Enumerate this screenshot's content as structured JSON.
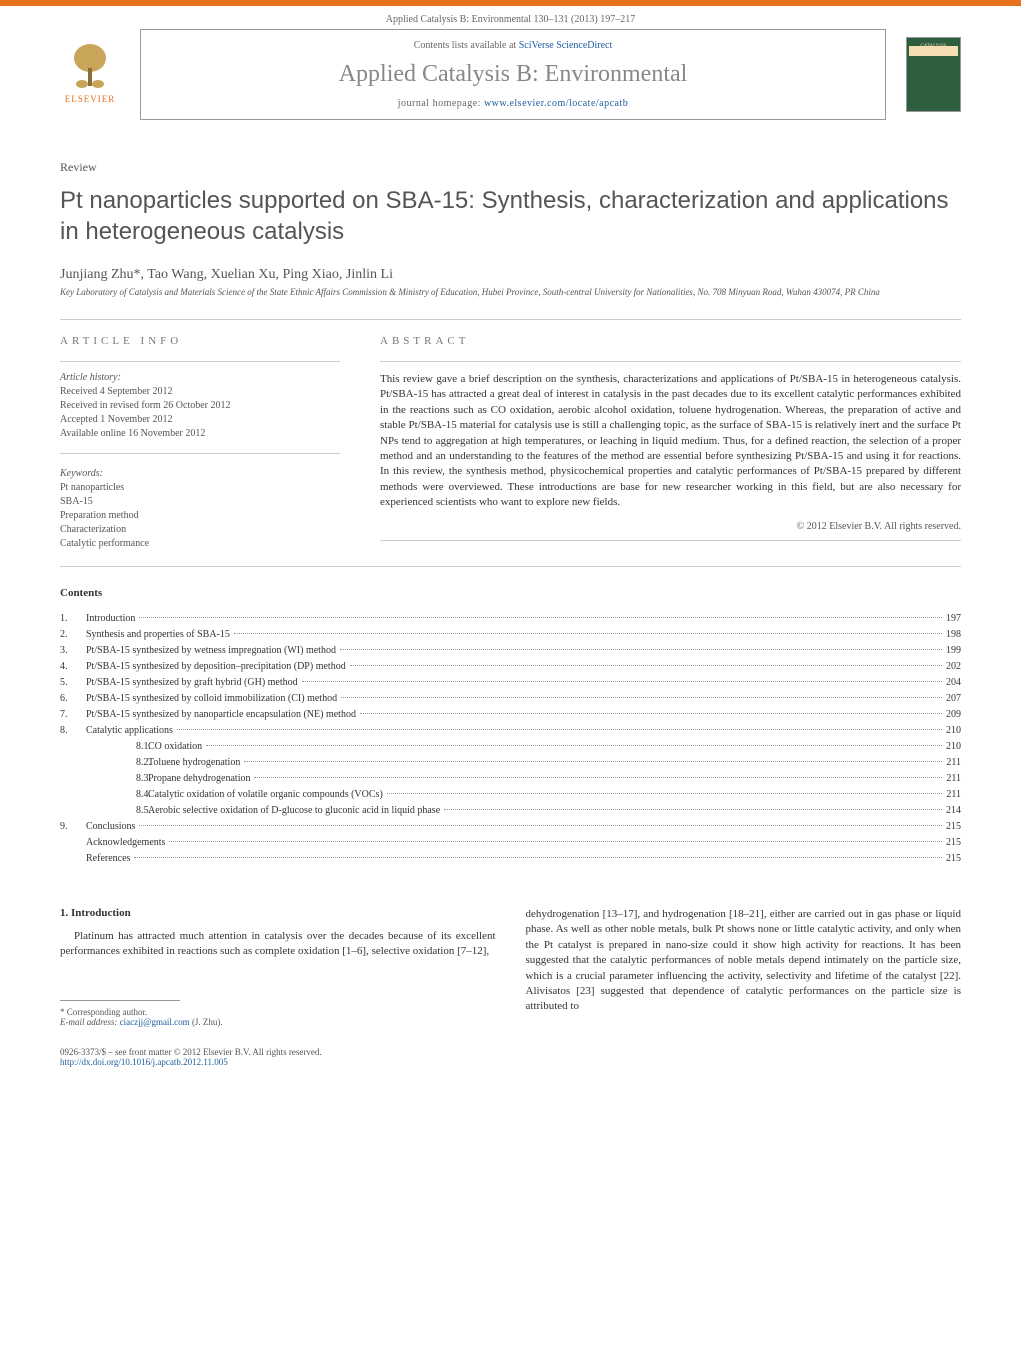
{
  "journal_header": "Applied Catalysis B: Environmental 130–131 (2013) 197–217",
  "contents_lists": "Contents lists available at",
  "scidirect": "SciVerse ScienceDirect",
  "journal_name": "Applied Catalysis B: Environmental",
  "homepage_label": "journal homepage:",
  "homepage_url": "www.elsevier.com/locate/apcatb",
  "elsevier": "ELSEVIER",
  "cover_text": "CATALYSIS",
  "review_label": "Review",
  "title": "Pt nanoparticles supported on SBA-15: Synthesis, characterization and applications in heterogeneous catalysis",
  "authors": "Junjiang Zhu*, Tao Wang, Xuelian Xu, Ping Xiao, Jinlin Li",
  "affiliation": "Key Laboratory of Catalysis and Materials Science of the State Ethnic Affairs Commission & Ministry of Education, Hubei Province, South-central University for Nationalities, No. 708 Minyuan Road, Wuhan 430074, PR China",
  "article_info_heading": "ARTICLE INFO",
  "abstract_heading": "ABSTRACT",
  "history_label": "Article history:",
  "history": [
    "Received 4 September 2012",
    "Received in revised form 26 October 2012",
    "Accepted 1 November 2012",
    "Available online 16 November 2012"
  ],
  "keywords_label": "Keywords:",
  "keywords": [
    "Pt nanoparticles",
    "SBA-15",
    "Preparation method",
    "Characterization",
    "Catalytic performance"
  ],
  "abstract": "This review gave a brief description on the synthesis, characterizations and applications of Pt/SBA-15 in heterogeneous catalysis. Pt/SBA-15 has attracted a great deal of interest in catalysis in the past decades due to its excellent catalytic performances exhibited in the reactions such as CO oxidation, aerobic alcohol oxidation, toluene hydrogenation. Whereas, the preparation of active and stable Pt/SBA-15 material for catalysis use is still a challenging topic, as the surface of SBA-15 is relatively inert and the surface Pt NPs tend to aggregation at high temperatures, or leaching in liquid medium. Thus, for a defined reaction, the selection of a proper method and an understanding to the features of the method are essential before synthesizing Pt/SBA-15 and using it for reactions. In this review, the synthesis method, physicochemical properties and catalytic performances of Pt/SBA-15 prepared by different methods were overviewed. These introductions are base for new researcher working in this field, but are also necessary for experienced scientists who want to explore new fields.",
  "copyright": "© 2012 Elsevier B.V. All rights reserved.",
  "contents_title": "Contents",
  "toc": [
    {
      "n": "1.",
      "label": "Introduction",
      "page": "197"
    },
    {
      "n": "2.",
      "label": "Synthesis and properties of SBA-15",
      "page": "198"
    },
    {
      "n": "3.",
      "label": "Pt/SBA-15 synthesized by wetness impregnation (WI) method",
      "page": "199"
    },
    {
      "n": "4.",
      "label": "Pt/SBA-15 synthesized by deposition–precipitation (DP) method",
      "page": "202"
    },
    {
      "n": "5.",
      "label": "Pt/SBA-15 synthesized by graft hybrid (GH) method",
      "page": "204"
    },
    {
      "n": "6.",
      "label": "Pt/SBA-15 synthesized by colloid immobilization (CI) method",
      "page": "207"
    },
    {
      "n": "7.",
      "label": "Pt/SBA-15 synthesized by nanoparticle encapsulation (NE) method",
      "page": "209"
    },
    {
      "n": "8.",
      "label": "Catalytic applications",
      "page": "210"
    },
    {
      "n": "8.1.",
      "label": "CO oxidation",
      "page": "210",
      "sub": true
    },
    {
      "n": "8.2.",
      "label": "Toluene hydrogenation",
      "page": "211",
      "sub": true
    },
    {
      "n": "8.3.",
      "label": "Propane dehydrogenation",
      "page": "211",
      "sub": true
    },
    {
      "n": "8.4.",
      "label": "Catalytic oxidation of volatile organic compounds (VOCs)",
      "page": "211",
      "sub": true
    },
    {
      "n": "8.5.",
      "label": "Aerobic selective oxidation of D-glucose to gluconic acid in liquid phase",
      "page": "214",
      "sub": true
    },
    {
      "n": "9.",
      "label": "Conclusions",
      "page": "215"
    },
    {
      "n": "",
      "label": "Acknowledgements",
      "page": "215"
    },
    {
      "n": "",
      "label": "References",
      "page": "215"
    }
  ],
  "intro_heading": "1. Introduction",
  "intro_left": "Platinum has attracted much attention in catalysis over the decades because of its excellent performances exhibited in reactions such as complete oxidation [1–6], selective oxidation [7–12],",
  "intro_right": "dehydrogenation [13–17], and hydrogenation [18–21], either are carried out in gas phase or liquid phase. As well as other noble metals, bulk Pt shows none or little catalytic activity, and only when the Pt catalyst is prepared in nano-size could it show high activity for reactions. It has been suggested that the catalytic performances of noble metals depend intimately on the particle size, which is a crucial parameter influencing the activity, selectivity and lifetime of the catalyst [22]. Alivisatos [23] suggested that dependence of catalytic performances on the particle size is attributed to",
  "corr_label": "* Corresponding author.",
  "email_label": "E-mail address:",
  "email": "ciaczjj@gmail.com",
  "email_suffix": " (J. Zhu).",
  "issn": "0926-3373/$ – see front matter © 2012 Elsevier B.V. All rights reserved.",
  "doi": "http://dx.doi.org/10.1016/j.apcatb.2012.11.005",
  "colors": {
    "orange": "#e8711c",
    "link": "#2060a0",
    "gray_text": "#555",
    "divider": "#ccc"
  }
}
